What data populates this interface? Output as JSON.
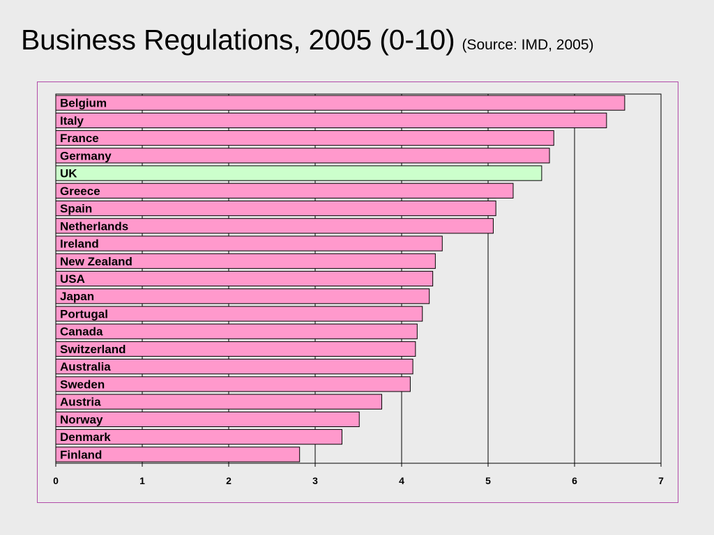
{
  "title": "Business Regulations, 2005 (0-10)",
  "source": "(Source: IMD, 2005)",
  "colors": {
    "bar": "#ff99cc",
    "highlight": "#ccffcc",
    "bar_border": "#000000",
    "frame": "#b04aa8",
    "background": "#ebebeb"
  },
  "chart_data": {
    "type": "bar",
    "orientation": "horizontal",
    "title": "",
    "xlabel": "",
    "ylabel": "",
    "xlim": [
      0,
      7
    ],
    "x_ticks": [
      0,
      1,
      2,
      3,
      4,
      5,
      6,
      7
    ],
    "grid": "vertical",
    "highlight_category": "UK",
    "categories": [
      "Belgium",
      "Italy",
      "France",
      "Germany",
      "UK",
      "Greece",
      "Spain",
      "Netherlands",
      "Ireland",
      "New Zealand",
      "USA",
      "Japan",
      "Portugal",
      "Canada",
      "Switzerland",
      "Australia",
      "Sweden",
      "Austria",
      "Norway",
      "Denmark",
      "Finland"
    ],
    "values": [
      6.58,
      6.37,
      5.76,
      5.71,
      5.62,
      5.29,
      5.09,
      5.06,
      4.47,
      4.39,
      4.36,
      4.32,
      4.24,
      4.18,
      4.16,
      4.13,
      4.1,
      3.77,
      3.51,
      3.31,
      2.82
    ]
  }
}
